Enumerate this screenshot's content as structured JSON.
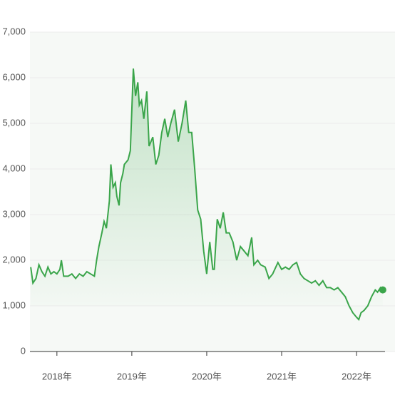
{
  "chart_data": {
    "type": "line",
    "x": [
      2017.65,
      2017.68,
      2017.72,
      2017.76,
      2017.8,
      2017.84,
      2017.88,
      2017.92,
      2017.96,
      2018.0,
      2018.04,
      2018.06,
      2018.09,
      2018.15,
      2018.2,
      2018.25,
      2018.3,
      2018.35,
      2018.4,
      2018.45,
      2018.5,
      2018.53,
      2018.56,
      2018.6,
      2018.63,
      2018.66,
      2018.7,
      2018.72,
      2018.75,
      2018.78,
      2018.8,
      2018.83,
      2018.85,
      2018.88,
      2018.9,
      2018.95,
      2018.98,
      2019.02,
      2019.05,
      2019.08,
      2019.1,
      2019.13,
      2019.16,
      2019.2,
      2019.23,
      2019.28,
      2019.32,
      2019.36,
      2019.4,
      2019.44,
      2019.48,
      2019.52,
      2019.57,
      2019.62,
      2019.67,
      2019.72,
      2019.76,
      2019.8,
      2019.84,
      2019.88,
      2019.92,
      2019.96,
      2020.0,
      2020.04,
      2020.08,
      2020.1,
      2020.14,
      2020.18,
      2020.22,
      2020.26,
      2020.3,
      2020.35,
      2020.4,
      2020.45,
      2020.5,
      2020.55,
      2020.6,
      2020.63,
      2020.68,
      2020.72,
      2020.78,
      2020.83,
      2020.88,
      2020.95,
      2021.0,
      2021.05,
      2021.1,
      2021.15,
      2021.2,
      2021.25,
      2021.3,
      2021.35,
      2021.4,
      2021.45,
      2021.5,
      2021.55,
      2021.6,
      2021.65,
      2021.7,
      2021.75,
      2021.8,
      2021.85,
      2021.9,
      2021.95,
      2022.0,
      2022.03,
      2022.06,
      2022.1,
      2022.15,
      2022.2,
      2022.25,
      2022.28,
      2022.32,
      2022.35
    ],
    "series": [
      {
        "color": "#3aa54a",
        "values": [
          1850,
          1500,
          1600,
          1900,
          1750,
          1650,
          1850,
          1700,
          1750,
          1700,
          1800,
          2000,
          1650,
          1650,
          1700,
          1600,
          1700,
          1650,
          1750,
          1700,
          1650,
          2000,
          2300,
          2600,
          2850,
          2700,
          3300,
          4100,
          3600,
          3700,
          3400,
          3200,
          3700,
          3900,
          4100,
          4200,
          4400,
          6200,
          5600,
          5900,
          5400,
          5500,
          5100,
          5700,
          4500,
          4700,
          4100,
          4300,
          4800,
          5100,
          4700,
          5000,
          5300,
          4600,
          5000,
          5500,
          4800,
          4800,
          4000,
          3100,
          2900,
          2200,
          1700,
          2400,
          1800,
          1800,
          2900,
          2700,
          3050,
          2600,
          2600,
          2400,
          2000,
          2300,
          2200,
          2100,
          2500,
          1900,
          2000,
          1900,
          1850,
          1600,
          1700,
          1950,
          1800,
          1850,
          1800,
          1900,
          1950,
          1700,
          1600,
          1550,
          1500,
          1550,
          1450,
          1550,
          1400,
          1400,
          1350,
          1400,
          1300,
          1200,
          1000,
          850,
          750,
          700,
          850,
          900,
          1000,
          1200,
          1350,
          1300,
          1400,
          1350
        ]
      }
    ],
    "xlim": [
      2017.64,
      2022.38
    ],
    "xticks": [
      {
        "value": 2018,
        "label": "2018年"
      },
      {
        "value": 2019,
        "label": "2019年"
      },
      {
        "value": 2020,
        "label": "2020年"
      },
      {
        "value": 2021,
        "label": "2021年"
      },
      {
        "value": 2022,
        "label": "2022年"
      }
    ],
    "ylim": [
      0,
      7000
    ],
    "yticks": [
      0,
      {
        "value": 1000,
        "label": "1,000"
      },
      {
        "value": 2000,
        "label": "2,000"
      },
      {
        "value": 3000,
        "label": "3,000"
      },
      {
        "value": 4000,
        "label": "4,000"
      },
      {
        "value": 5000,
        "label": "5,000"
      },
      {
        "value": 6000,
        "label": "6,000"
      },
      {
        "value": 7000,
        "label": "7,000"
      }
    ],
    "grid": true
  }
}
